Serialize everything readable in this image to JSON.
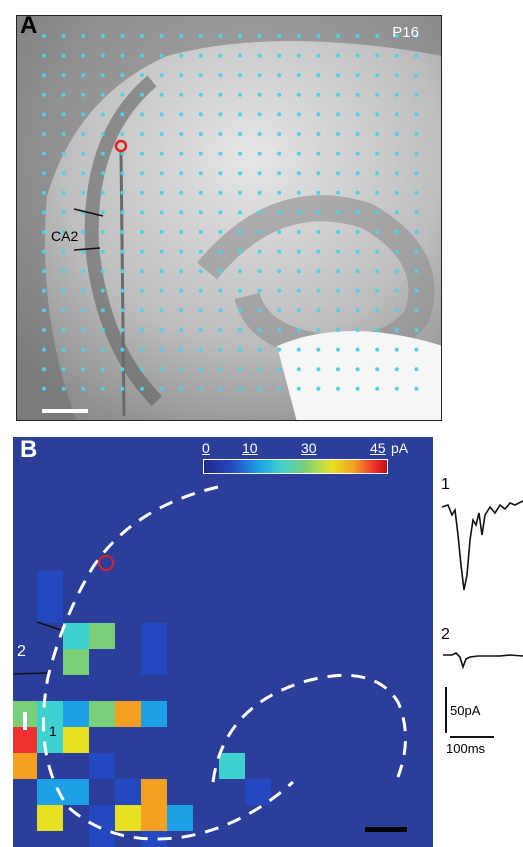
{
  "panel_a": {
    "letter": "A",
    "age_label": "P16",
    "region_label": "CA2"
  },
  "panel_b": {
    "letter": "B",
    "colorbar": {
      "ticks": [
        "0",
        "10",
        "30",
        "45"
      ],
      "unit": "pA",
      "colors": [
        "#1f2a8a",
        "#2448c0",
        "#1ea0e6",
        "#3fd0d0",
        "#7ad07a",
        "#e5e020",
        "#f5a020",
        "#ef3030"
      ]
    },
    "site_labels": [
      "2",
      "1"
    ],
    "background_color": "#2b3f9a"
  },
  "traces": {
    "trace1_label": "1",
    "trace2_label": "2",
    "amp_scale": "50pA",
    "time_scale": "100ms"
  },
  "chart_data": {
    "type": "heatmap",
    "title": "",
    "colorbar_unit": "pA",
    "colorbar_range": [
      0,
      45
    ],
    "cells": [
      {
        "col": 1,
        "row": 5,
        "pA": 8
      },
      {
        "col": 1,
        "row": 6,
        "pA": 6
      },
      {
        "col": 2,
        "row": 7,
        "pA": 22
      },
      {
        "col": 3,
        "row": 7,
        "pA": 24
      },
      {
        "col": 5,
        "row": 7,
        "pA": 5
      },
      {
        "col": 2,
        "row": 8,
        "pA": 25
      },
      {
        "col": 5,
        "row": 8,
        "pA": 7
      },
      {
        "col": 0,
        "row": 10,
        "pA": 26
      },
      {
        "col": 1,
        "row": 10,
        "pA": 18
      },
      {
        "col": 2,
        "row": 10,
        "pA": 12
      },
      {
        "col": 3,
        "row": 10,
        "pA": 28
      },
      {
        "col": 4,
        "row": 10,
        "pA": 36
      },
      {
        "col": 5,
        "row": 10,
        "pA": 14
      },
      {
        "col": 0,
        "row": 11,
        "pA": 44
      },
      {
        "col": 1,
        "row": 11,
        "pA": 20
      },
      {
        "col": 2,
        "row": 11,
        "pA": 34
      },
      {
        "col": 0,
        "row": 12,
        "pA": 39
      },
      {
        "col": 3,
        "row": 12,
        "pA": 4
      },
      {
        "col": 1,
        "row": 13,
        "pA": 14
      },
      {
        "col": 2,
        "row": 13,
        "pA": 15
      },
      {
        "col": 4,
        "row": 13,
        "pA": 6
      },
      {
        "col": 8,
        "row": 12,
        "pA": 20
      },
      {
        "col": 1,
        "row": 14,
        "pA": 35
      },
      {
        "col": 3,
        "row": 14,
        "pA": 6
      },
      {
        "col": 5,
        "row": 13,
        "pA": 38
      },
      {
        "col": 5,
        "row": 14,
        "pA": 36
      },
      {
        "col": 4,
        "row": 14,
        "pA": 32
      },
      {
        "col": 6,
        "row": 14,
        "pA": 16
      },
      {
        "col": 9,
        "row": 13,
        "pA": 4
      },
      {
        "col": 3,
        "row": 15,
        "pA": 4
      },
      {
        "col": 5,
        "row": 15,
        "pA": 6
      },
      {
        "col": 5,
        "row": 16,
        "pA": 3
      },
      {
        "col": 6,
        "row": 16,
        "pA": 3
      },
      {
        "col": 7,
        "row": 16,
        "pA": 3
      },
      {
        "col": 4,
        "row": 16,
        "pA": 4
      }
    ]
  }
}
